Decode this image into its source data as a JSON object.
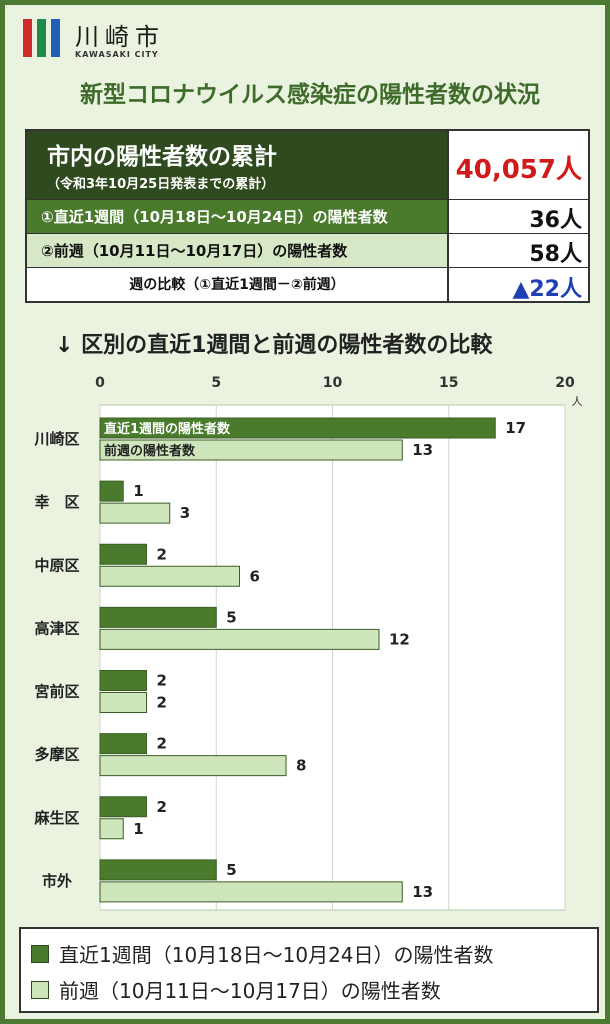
{
  "brand": {
    "name": "川崎市",
    "sub": "KAWASAKI CITY",
    "bar_colors": [
      "#d12a2a",
      "#1f8a4a",
      "#1f5fb5"
    ]
  },
  "title": "新型コロナウイルス感染症の陽性者数の状況",
  "summary": {
    "heading": "市内の陽性者数の累計",
    "subheading": "（令和3年10月25日発表までの累計）",
    "total": "40,057人",
    "rows": [
      {
        "label": "①直近1週間（10月18日～10月24日）の陽性者数",
        "value": "36人"
      },
      {
        "label": "②前週（10月11日～10月17日）の陽性者数",
        "value": "58人"
      },
      {
        "label": "週の比較（①直近1週間－②前週）",
        "value": "▲22人"
      }
    ]
  },
  "chart_title": "↓ 区別の直近1週間と前週の陽性者数の比較",
  "chart_data": {
    "type": "bar",
    "orientation": "horizontal",
    "categories": [
      "川崎区",
      "幸　区",
      "中原区",
      "高津区",
      "宮前区",
      "多摩区",
      "麻生区",
      "市外"
    ],
    "series": [
      {
        "name": "直近1週間の陽性者数",
        "values": [
          17,
          1,
          2,
          5,
          2,
          2,
          2,
          5
        ],
        "color": "#4a7a2c"
      },
      {
        "name": "前週の陽性者数",
        "values": [
          13,
          3,
          6,
          12,
          2,
          8,
          1,
          13
        ],
        "color": "#cfe6bc"
      }
    ],
    "xlim": [
      0,
      20
    ],
    "xticks": [
      0,
      5,
      10,
      15,
      20
    ],
    "xunit": "人",
    "grid": true,
    "legend": "bottom"
  },
  "legend": [
    {
      "label": "直近1週間（10月18日～10月24日）の陽性者数",
      "color": "#4a7a2c"
    },
    {
      "label": "前週（10月11日～10月17日）の陽性者数",
      "color": "#cfe6bc"
    }
  ]
}
